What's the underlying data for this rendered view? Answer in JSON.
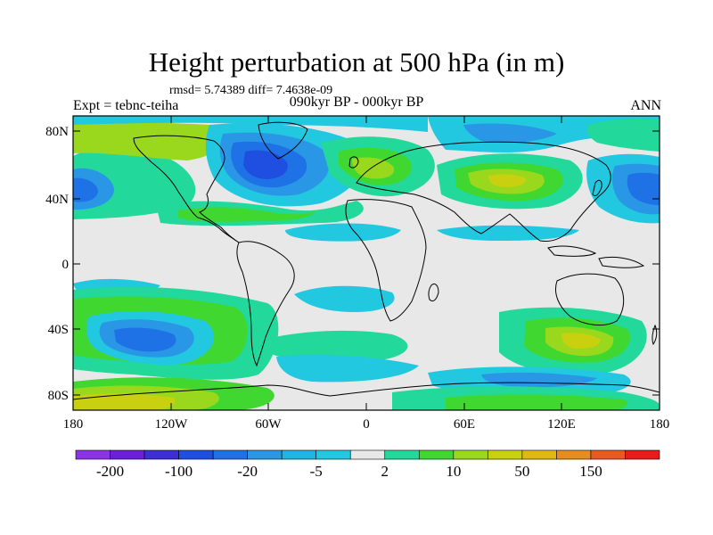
{
  "title": "Height perturbation at 500 hPa (in m)",
  "stats": "rmsd= 5.74389 diff= 7.4638e-09",
  "experiment": "Expt = tebnc-teiha",
  "period": "090kyr BP - 000kyr BP",
  "season": "ANN",
  "lat_labels": [
    "80N",
    "40N",
    "0",
    "40S",
    "80S"
  ],
  "lon_labels": [
    "180",
    "120W",
    "60W",
    "0",
    "60E",
    "120E",
    "180"
  ],
  "colorbar": {
    "colors": [
      "#8c33e6",
      "#6a1fd8",
      "#3d2fd6",
      "#1f4fe0",
      "#1f72e6",
      "#2a97e6",
      "#1eb4e8",
      "#22c8e0",
      "#e8e8e8",
      "#22d89a",
      "#40d830",
      "#9ad81e",
      "#c8d010",
      "#e0b814",
      "#e88c20",
      "#e85a1e",
      "#e81c1c"
    ],
    "labels": [
      "-200",
      "-100",
      "-20",
      "-5",
      "2",
      "10",
      "50",
      "150"
    ]
  }
}
